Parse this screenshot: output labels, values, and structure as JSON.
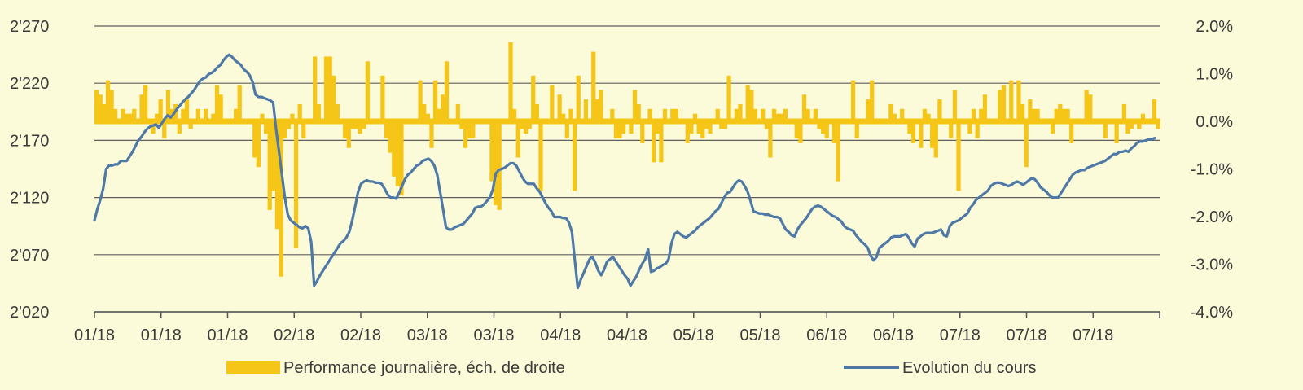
{
  "chart_data": {
    "type": "bar+line",
    "colors": {
      "background": "#fbfad9",
      "bars": "#f5c518",
      "line": "#4e79a7",
      "grid": "#5f5f5f"
    },
    "x_tick_labels": [
      "01/18",
      "01/18",
      "01/18",
      "02/18",
      "02/18",
      "03/18",
      "03/18",
      "04/18",
      "04/18",
      "05/18",
      "05/18",
      "06/18",
      "06/18",
      "07/18",
      "07/18",
      "07/18"
    ],
    "y_left": {
      "ylim": [
        2020,
        2270
      ],
      "ticks": [
        2020,
        2070,
        2120,
        2170,
        2220,
        2270
      ],
      "tick_labels": [
        "2'020",
        "2'070",
        "2'120",
        "2'170",
        "2'220",
        "2'270"
      ]
    },
    "y_right": {
      "ylim": [
        -4.0,
        2.0
      ],
      "ticks": [
        -4,
        -3,
        -2,
        -1,
        0,
        1,
        2
      ],
      "tick_labels": [
        "-4.0%",
        "-3.0%",
        "-2.0%",
        "-1.0%",
        "0.0%",
        "1.0%",
        "2.0%"
      ]
    },
    "series": [
      {
        "name": "Performance journalière, éch. de droite",
        "type": "bar",
        "axis": "right",
        "unit": "%",
        "values": [
          0.6,
          0.5,
          0.3,
          0.8,
          0.6,
          0.2,
          0.0,
          0.2,
          0.1,
          0.1,
          0.2,
          0.0,
          0.5,
          0.7,
          0.0,
          -0.2,
          0.1,
          0.4,
          -0.3,
          0.6,
          0.2,
          0.3,
          -0.2,
          0.2,
          0.4,
          -0.1,
          0.0,
          0.2,
          0.0,
          0.2,
          0.0,
          0.1,
          0.7,
          0.5,
          0.0,
          0.0,
          0.0,
          0.2,
          0.7,
          0.0,
          0.0,
          0.0,
          -0.7,
          -0.9,
          0.1,
          -0.2,
          -1.8,
          -1.4,
          -2.2,
          -3.2,
          -0.3,
          -0.1,
          0.1,
          -2.6,
          0.3,
          -0.3,
          0.0,
          0.0,
          1.3,
          0.3,
          0.0,
          1.3,
          1.3,
          0.9,
          0.3,
          0.0,
          -0.3,
          -0.5,
          -0.1,
          -0.1,
          -0.2,
          -0.1,
          1.2,
          0.0,
          0.0,
          0.0,
          0.9,
          -0.3,
          -0.6,
          -1.1,
          -1.3,
          -1.5,
          0.0,
          0.0,
          0.0,
          0.0,
          0.8,
          0.3,
          0.1,
          -0.5,
          0.8,
          0.2,
          0.5,
          1.2,
          0.0,
          0.0,
          0.3,
          -0.1,
          -0.5,
          -0.3,
          -0.3,
          0.0,
          0.0,
          0.0,
          0.0,
          -1.2,
          -1.7,
          -1.8,
          0.0,
          0.0,
          1.6,
          0.2,
          -0.7,
          -0.1,
          -0.2,
          -0.1,
          0.9,
          0.3,
          -1.4,
          0.0,
          0.0,
          0.7,
          0.0,
          0.5,
          0.1,
          -0.3,
          0.2,
          -1.4,
          0.9,
          0.0,
          0.4,
          0.0,
          1.4,
          0.4,
          0.6,
          0.0,
          0.0,
          0.2,
          -0.3,
          -0.3,
          -0.2,
          0.0,
          -0.2,
          0.6,
          0.3,
          -0.4,
          0.0,
          0.2,
          -0.8,
          -0.2,
          -0.8,
          0.2,
          0.0,
          0.2,
          0.2,
          0.0,
          0.0,
          -0.4,
          -0.2,
          0.1,
          -0.2,
          -0.3,
          -0.1,
          -0.2,
          0.0,
          0.2,
          -0.1,
          -0.1,
          0.9,
          0.0,
          0.2,
          0.3,
          0.0,
          0.7,
          0.6,
          0.2,
          0.0,
          0.2,
          -0.1,
          -0.7,
          0.2,
          0.1,
          0.1,
          0.2,
          0.0,
          0.0,
          -0.3,
          -0.4,
          0.5,
          0.2,
          0.0,
          0.2,
          -0.1,
          -0.2,
          -0.3,
          0.0,
          -0.4,
          -1.2,
          0.0,
          0.0,
          0.0,
          0.8,
          -0.3,
          0.0,
          0.0,
          0.4,
          0.8,
          0.0,
          0.0,
          0.0,
          0.0,
          0.3,
          0.1,
          0.0,
          0.2,
          0.0,
          -0.2,
          -0.4,
          0.0,
          -0.5,
          0.2,
          0.1,
          -0.5,
          -0.7,
          0.4,
          0.0,
          0.0,
          -0.3,
          0.6,
          -1.4,
          0.0,
          0.0,
          -0.2,
          0.2,
          -0.3,
          0.2,
          0.5,
          0.0,
          0.0,
          0.0,
          0.6,
          0.7,
          0.0,
          0.8,
          0.0,
          0.8,
          0.3,
          -0.9,
          0.4,
          0.2,
          0.2,
          0.0,
          0.0,
          0.0,
          -0.2,
          0.2,
          0.3,
          0.2,
          0.2,
          -0.4,
          0.0,
          0.0,
          0.0,
          0.6,
          0.5,
          0.0,
          0.0,
          0.0,
          -0.3,
          0.0,
          0.0,
          -0.4,
          0.0,
          0.3,
          -0.2,
          -0.1,
          0.0,
          -0.1,
          0.1,
          0.0,
          0.0,
          0.4,
          -0.1
        ]
      },
      {
        "name": "Evolution du cours",
        "type": "line",
        "axis": "left",
        "values": [
          2100,
          2110,
          2118,
          2128,
          2145,
          2148,
          2148,
          2149,
          2149,
          2152,
          2152,
          2152,
          2156,
          2160,
          2165,
          2170,
          2173,
          2177,
          2180,
          2182,
          2183,
          2184,
          2181,
          2185,
          2189,
          2192,
          2190,
          2193,
          2197,
          2200,
          2203,
          2206,
          2208,
          2211,
          2214,
          2218,
          2222,
          2224,
          2225,
          2228,
          2229,
          2231,
          2234,
          2236,
          2240,
          2243,
          2245,
          2243,
          2240,
          2238,
          2236,
          2232,
          2230,
          2227,
          2221,
          2210,
          2208,
          2208,
          2207,
          2206,
          2205,
          2203,
          2180,
          2160,
          2140,
          2120,
          2105,
          2100,
          2098,
          2096,
          2094,
          2093,
          2095,
          2093,
          2081,
          2043,
          2047,
          2052,
          2056,
          2060,
          2064,
          2068,
          2072,
          2076,
          2080,
          2082,
          2085,
          2090,
          2100,
          2112,
          2125,
          2132,
          2134,
          2135,
          2134,
          2134,
          2133,
          2133,
          2132,
          2128,
          2123,
          2120,
          2120,
          2119,
          2124,
          2130,
          2136,
          2140,
          2142,
          2145,
          2148,
          2149,
          2152,
          2153,
          2154,
          2152,
          2148,
          2140,
          2125,
          2110,
          2094,
          2092,
          2092,
          2094,
          2095,
          2096,
          2097,
          2100,
          2103,
          2106,
          2111,
          2112,
          2112,
          2114,
          2117,
          2120,
          2127,
          2141,
          2144,
          2145,
          2146,
          2148,
          2150,
          2150,
          2148,
          2143,
          2138,
          2134,
          2132,
          2132,
          2132,
          2128,
          2125,
          2120,
          2115,
          2111,
          2108,
          2103,
          2103,
          2103,
          2102,
          2102,
          2098,
          2090,
          2065,
          2041,
          2048,
          2054,
          2060,
          2066,
          2068,
          2063,
          2056,
          2052,
          2057,
          2064,
          2066,
          2068,
          2064,
          2060,
          2056,
          2052,
          2049,
          2043,
          2047,
          2051,
          2057,
          2062,
          2066,
          2075,
          2055,
          2056,
          2058,
          2059,
          2061,
          2062,
          2066,
          2080,
          2088,
          2090,
          2088,
          2086,
          2085,
          2087,
          2089,
          2091,
          2094,
          2096,
          2098,
          2100,
          2102,
          2105,
          2108,
          2110,
          2115,
          2120,
          2124,
          2125,
          2129,
          2133,
          2135,
          2134,
          2130,
          2125,
          2117,
          2108,
          2107,
          2106,
          2106,
          2105,
          2105,
          2104,
          2103,
          2103,
          2102,
          2097,
          2092,
          2090,
          2087,
          2086,
          2092,
          2096,
          2099,
          2102,
          2106,
          2110,
          2112,
          2113,
          2112,
          2110,
          2108,
          2106,
          2104,
          2103,
          2101,
          2099,
          2095,
          2093,
          2092,
          2091,
          2087,
          2084,
          2081,
          2079,
          2076,
          2069,
          2065,
          2068,
          2076,
          2078,
          2080,
          2082,
          2085,
          2086,
          2086,
          2086,
          2087,
          2088,
          2085,
          2080,
          2077,
          2084,
          2086,
          2088,
          2089,
          2089,
          2089,
          2090,
          2091,
          2092,
          2087,
          2086,
          2095,
          2098,
          2099,
          2100,
          2102,
          2104,
          2106,
          2111,
          2114,
          2118,
          2120,
          2122,
          2124,
          2126,
          2130,
          2132,
          2133,
          2133,
          2132,
          2131,
          2130,
          2131,
          2133,
          2134,
          2133,
          2131,
          2133,
          2135,
          2137,
          2136,
          2133,
          2129,
          2127,
          2125,
          2122,
          2120,
          2120,
          2120,
          2124,
          2128,
          2132,
          2136,
          2140,
          2142,
          2143,
          2144,
          2144,
          2146,
          2147,
          2148,
          2149,
          2150,
          2151,
          2152,
          2154,
          2156,
          2158,
          2158,
          2160,
          2160,
          2161,
          2160,
          2163,
          2165,
          2168,
          2169,
          2169,
          2170,
          2171,
          2171,
          2172
        ]
      }
    ],
    "legend": {
      "placement": "bottom",
      "items": [
        "Performance journalière, éch. de droite",
        "Evolution du cours"
      ]
    }
  }
}
